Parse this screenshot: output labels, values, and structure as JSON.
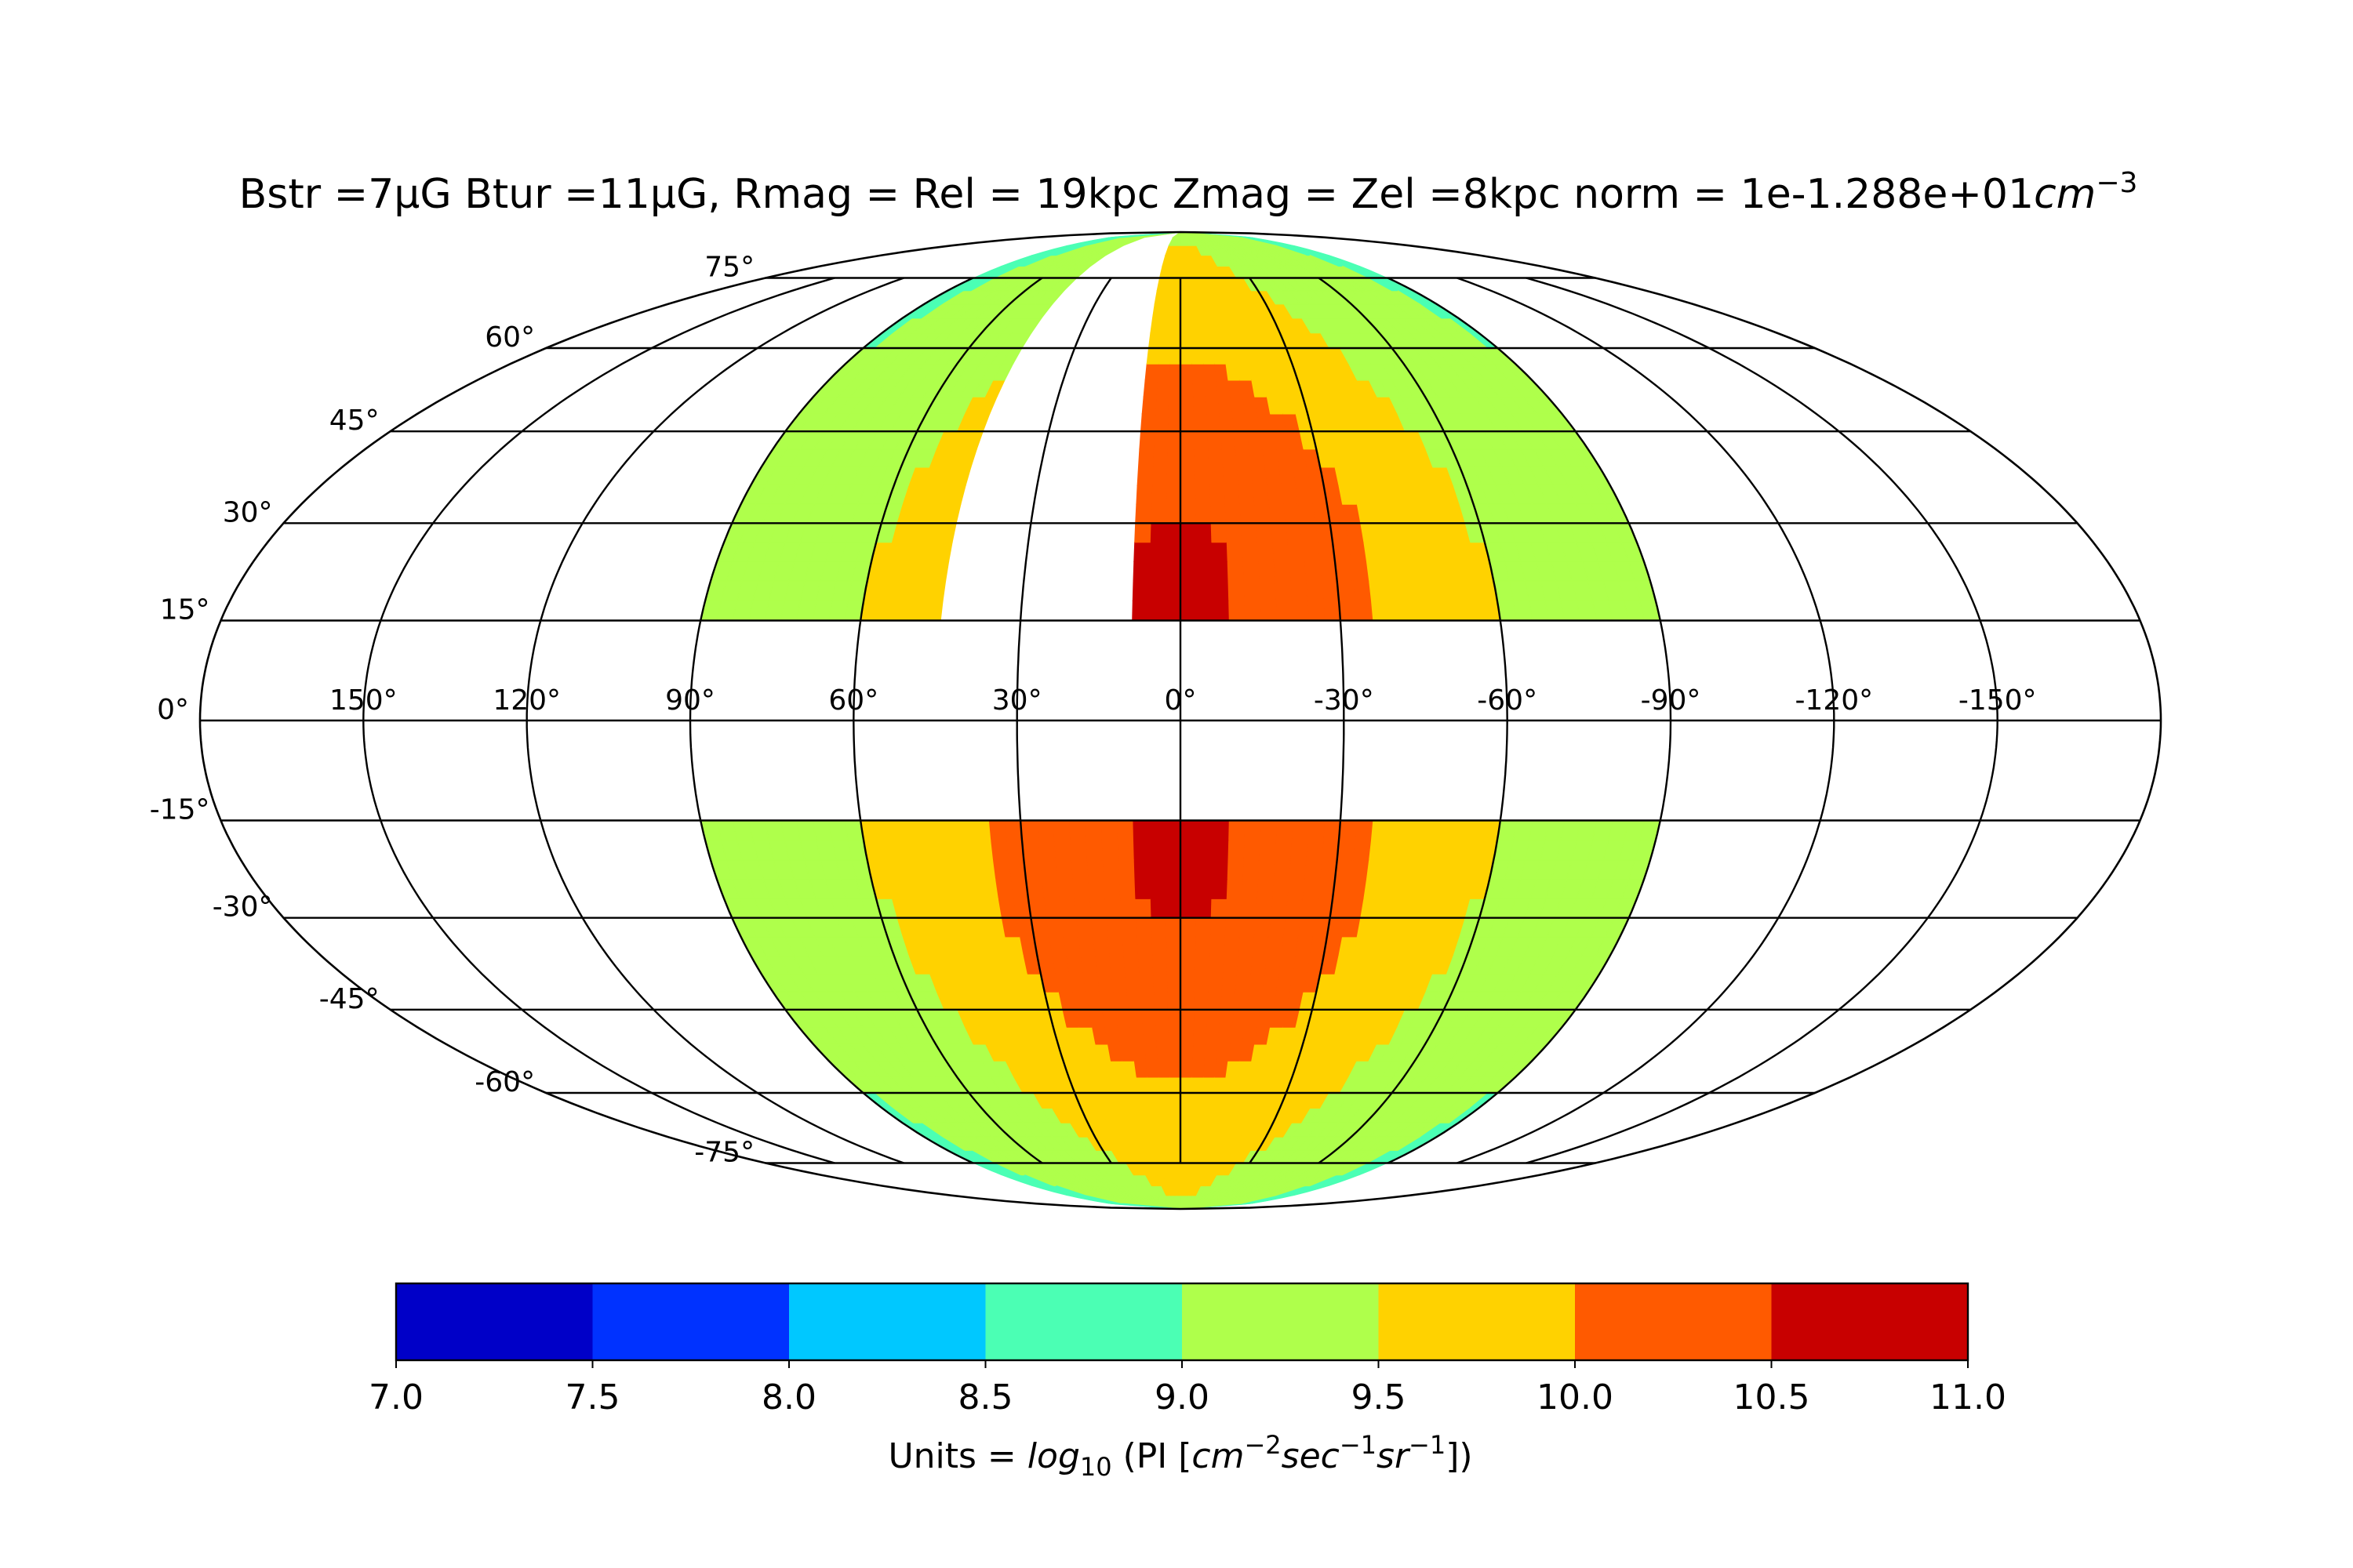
{
  "chart_data": {
    "type": "heatmap",
    "projection": "mollweide",
    "title": {
      "main": "Bstr =7μG Btur =11μG, Rmag = Rel = 19kpc Zmag = Zel =8kpc norm = 1e-1.288e+01",
      "unit_base": "cm",
      "unit_exp": "−3"
    },
    "longitude_ticks": [
      {
        "value": 150,
        "label": "150°"
      },
      {
        "value": 120,
        "label": "120°"
      },
      {
        "value": 90,
        "label": "90°"
      },
      {
        "value": 60,
        "label": "60°"
      },
      {
        "value": 30,
        "label": "30°"
      },
      {
        "value": 0,
        "label": "0°"
      },
      {
        "value": -30,
        "label": "-30°"
      },
      {
        "value": -60,
        "label": "-60°"
      },
      {
        "value": -90,
        "label": "-90°"
      },
      {
        "value": -120,
        "label": "-120°"
      },
      {
        "value": -150,
        "label": "-150°"
      }
    ],
    "latitude_ticks": [
      {
        "value": 75,
        "label": "75°"
      },
      {
        "value": 60,
        "label": "60°"
      },
      {
        "value": 45,
        "label": "45°"
      },
      {
        "value": 30,
        "label": "30°"
      },
      {
        "value": 15,
        "label": "15°"
      },
      {
        "value": 0,
        "label": "0°"
      },
      {
        "value": -15,
        "label": "-15°"
      },
      {
        "value": -30,
        "label": "-30°"
      },
      {
        "value": -45,
        "label": "-45°"
      },
      {
        "value": -60,
        "label": "-60°"
      },
      {
        "value": -75,
        "label": "-75°"
      }
    ],
    "data_coverage": {
      "longitude_range": [
        -90,
        90
      ],
      "masked_latitude_band": [
        -15,
        15
      ],
      "masked_wedge_north": {
        "lon_range": [
          10,
          45
        ],
        "lat_range": [
          15,
          90
        ]
      },
      "peak_value_approx": 10.2,
      "peak_location_approx": [
        0,
        20
      ],
      "edge_value_approx": 8.9
    },
    "colorbar": {
      "range": [
        7.0,
        11.0
      ],
      "boundaries": [
        7.0,
        7.5,
        8.0,
        8.5,
        9.0,
        9.5,
        10.0,
        10.5,
        11.0
      ],
      "colors": [
        "#0000c8",
        "#0032ff",
        "#00c8ff",
        "#4bffb4",
        "#afff4b",
        "#ffd200",
        "#ff5a00",
        "#c80000"
      ],
      "tick_labels": [
        "7.0",
        "7.5",
        "8.0",
        "8.5",
        "9.0",
        "9.5",
        "10.0",
        "10.5",
        "11.0"
      ],
      "label": {
        "prefix": "Units = ",
        "log": "log",
        "log_sub": "10",
        "pi_open": " (PI [",
        "cm": "cm",
        "cm_exp": "−2",
        "sec": "sec",
        "sec_exp": "−1",
        "sr": "sr",
        "sr_exp": "−1",
        "close": "])"
      }
    }
  }
}
